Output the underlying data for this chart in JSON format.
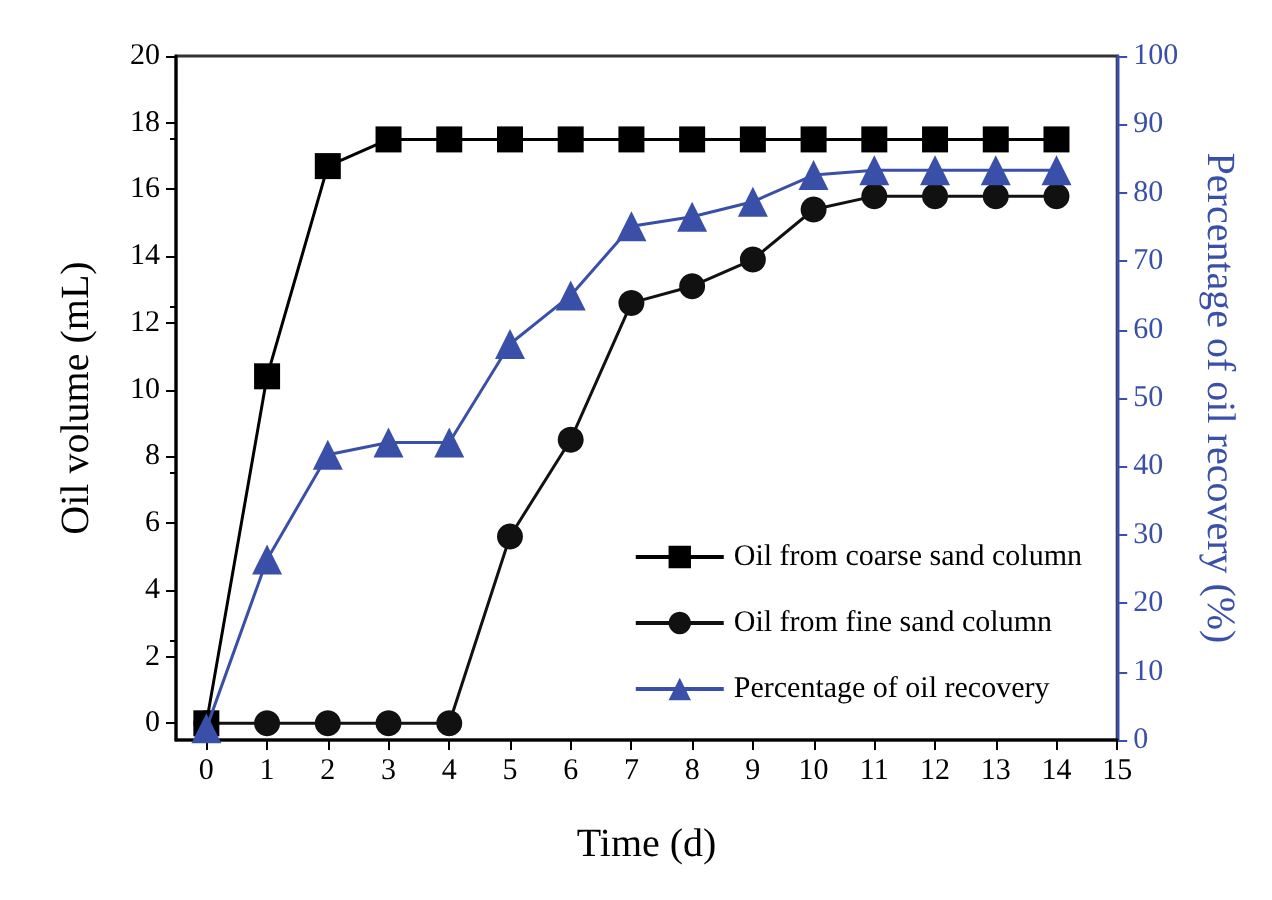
{
  "chart_data": {
    "type": "line",
    "xlabel": "Time (d)",
    "ylabel": "Oil volume (mL)",
    "y2label": "Percentage of oil recovery (%)",
    "x": [
      0,
      1,
      2,
      3,
      4,
      5,
      6,
      7,
      8,
      9,
      10,
      11,
      12,
      13,
      14
    ],
    "series": [
      {
        "name": "Oil from coarse sand column",
        "color": "#000000",
        "marker": "square",
        "values": [
          0,
          10.4,
          16.7,
          17.5,
          17.5,
          17.5,
          17.5,
          17.5,
          17.5,
          17.5,
          17.5,
          17.5,
          17.5,
          17.5,
          17.5
        ]
      },
      {
        "name": "Oil from fine sand column",
        "color": "#111111",
        "marker": "circle",
        "values": [
          0,
          0,
          0,
          0,
          0,
          5.6,
          8.5,
          12.6,
          13.1,
          13.9,
          15.4,
          15.8,
          15.8,
          15.8,
          15.8
        ]
      },
      {
        "name": "Percentage of oil recovery",
        "color": "#3a4fa8",
        "marker": "triangle",
        "axis": "y2",
        "values": [
          1.7,
          26.4,
          41.7,
          43.5,
          43.5,
          57.9,
          65,
          75.1,
          76.5,
          78.7,
          82.6,
          83.3,
          83.3,
          83.3,
          83.3
        ]
      }
    ],
    "xlim": [
      -0.5,
      15
    ],
    "xticks": [
      0,
      1,
      2,
      3,
      4,
      5,
      6,
      7,
      8,
      9,
      10,
      11,
      12,
      13,
      14,
      15
    ],
    "ylim": [
      -0.5,
      20
    ],
    "yticks": [
      0,
      2,
      4,
      6,
      8,
      10,
      12,
      14,
      16,
      18,
      20
    ],
    "y2lim": [
      0,
      100
    ],
    "y2ticks": [
      0,
      10,
      20,
      30,
      40,
      50,
      60,
      70,
      80,
      90,
      100
    ],
    "grid": false,
    "legend": "bottom right",
    "line_style": "solid"
  }
}
